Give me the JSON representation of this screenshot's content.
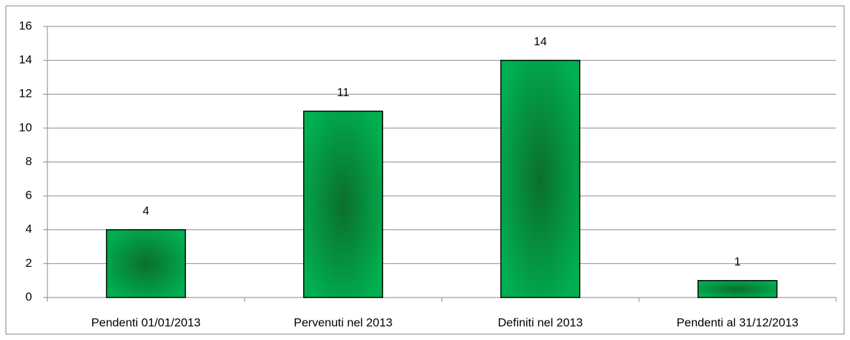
{
  "chart_data": {
    "type": "bar",
    "categories": [
      "Pendenti 01/01/2013",
      "Pervenuti nel 2013",
      "Definiti nel 2013",
      "Pendenti al 31/12/2013"
    ],
    "values": [
      4,
      11,
      14,
      1
    ],
    "color": "#00b050",
    "ylim": [
      0,
      16
    ],
    "yticks": [
      0,
      2,
      4,
      6,
      8,
      10,
      12,
      14,
      16
    ],
    "grid": true
  }
}
